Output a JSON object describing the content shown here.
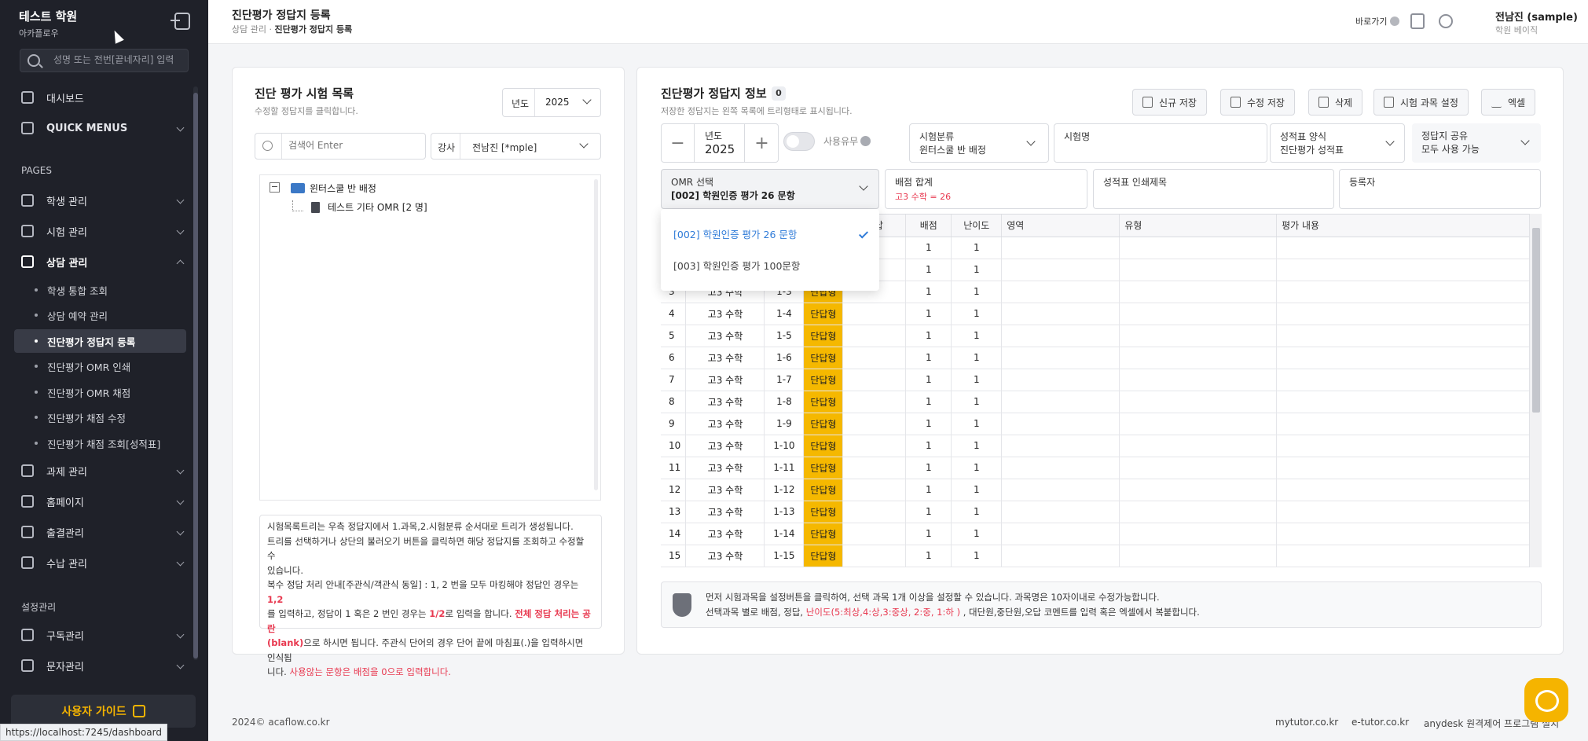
{
  "sidebar": {
    "brand_name": "테스트 학원",
    "brand_sub": "아카플로우",
    "search_placeholder": "성명 또는 전번[끝네자리] 입력",
    "dashboard": "대시보드",
    "quick_menus": "QUICK MENUS",
    "pages_section": "PAGES",
    "student": "학생 관리",
    "exam": "시험 관리",
    "counsel": "상담 관리",
    "sub_items": [
      "학생 통합 조회",
      "상담 예약 관리",
      "진단평가 정답지 등록",
      "진단평가 OMR 인쇄",
      "진단평가 OMR 채점",
      "진단평가 채점 수정",
      "진단평가 채점 조회[성적표]"
    ],
    "assignment": "과제 관리",
    "homepage": "홈페이지",
    "attendance": "출결관리",
    "payment": "수납 관리",
    "settings_section": "설정관리",
    "subscription": "구독관리",
    "sms": "문자관리",
    "guide_button": "사용자 가이드",
    "status_url": "https://localhost:7245/dashboard"
  },
  "header": {
    "title": "진단평가 정답지 등록",
    "crumb_parent": "상담 관리",
    "crumb_current": "진단평가 정답지 등록",
    "shortcut": "바로가기",
    "user_name": "전남진 (sample)",
    "user_role": "학원 베이직"
  },
  "left": {
    "title": "진단 평가 시험 목록",
    "subtitle": "수정할 정답지를 클릭합니다.",
    "year_label": "년도",
    "year_value": "2025",
    "search_placeholder": "검색어 Enter",
    "teacher_label": "강사",
    "teacher_value": "전남진 [*mple]",
    "tree_folder": "윈터스쿨 반 배정",
    "tree_file": "테스트 기타 OMR [2 명]",
    "notice": {
      "l1": "시험목록트리는 우측 정답지에서 1.과목,2.시험분류 순서대로 트리가 생성됩니다.",
      "l2": "트리를 선택하거나 상단의 불러오기 버튼을 클릭하면 해당 정답지를 조회하고 수정할 수",
      "l3": "있습니다.",
      "l4a": "복수 정답 처리 안내[주관식/객관식 동일] : 1, 2 번을 모두 마킹해야 정답인 경우는 ",
      "l4b": "1,2",
      "l5a": "를 입력하고, 정답이 1 혹은 2 번인 경우는 ",
      "l5b": "1/2",
      "l5c": "로 입력을 합니다. ",
      "l5d": "전체 정답 처리는 공란",
      "l6a": "(blank)",
      "l6b": "으로 하시면 됩니다. 주관식 단어의 경우 단어 끝에 마침표(.)을 입력하시면 인식됩",
      "l7a": "니다. ",
      "l7b": "사용않는 문항은 배점을 0으로 입력합니다."
    }
  },
  "right": {
    "title": "진단평가 정답지 정보",
    "count": "0",
    "subtitle": "저장한 정답지는 왼쪽 목록에 트리형태로 표시됩니다.",
    "buttons": [
      "신규 저장",
      "수정 저장",
      "삭제",
      "시험 과목 설정",
      "엑셀"
    ],
    "year_label": "년도",
    "year_value": "2025",
    "minus": "−",
    "plus": "+",
    "use_label": "사용유무",
    "category_label": "시험분류",
    "category_value": "윈터스쿨 반 배정",
    "exam_name_label": "시험명",
    "report_form_label": "성적표 양식",
    "report_form_value": "진단평가 성적표",
    "share_label": "정답지 공유",
    "share_value": "모두 사용 가능",
    "omr_label": "OMR 선택",
    "omr_value": "[002] 학원인증 평가 26 문항",
    "score_label": "배점 합계",
    "score_value": "고3 수학 = 26",
    "print_title_label": "성적표 인쇄제목",
    "registrar_label": "등록자",
    "dropdown_options": [
      "[002] 학원인증 평가 26 문항",
      "[003] 학원인증 평가 100문항"
    ],
    "columns": [
      "No",
      "과목",
      "번호",
      "유형",
      "정답",
      "배점",
      "난이도",
      "영역",
      "유형",
      "평가 내용"
    ],
    "rows": [
      {
        "no": "1",
        "subject": "고3 수학",
        "qno": "1-1",
        "type": "단답형",
        "answer": "",
        "score": "1",
        "level": "1"
      },
      {
        "no": "2",
        "subject": "고3 수학",
        "qno": "1-2",
        "type": "단답형",
        "answer": "",
        "score": "1",
        "level": "1"
      },
      {
        "no": "3",
        "subject": "고3 수학",
        "qno": "1-3",
        "type": "단답형",
        "answer": "",
        "score": "1",
        "level": "1"
      },
      {
        "no": "4",
        "subject": "고3 수학",
        "qno": "1-4",
        "type": "단답형",
        "answer": "",
        "score": "1",
        "level": "1"
      },
      {
        "no": "5",
        "subject": "고3 수학",
        "qno": "1-5",
        "type": "단답형",
        "answer": "",
        "score": "1",
        "level": "1"
      },
      {
        "no": "6",
        "subject": "고3 수학",
        "qno": "1-6",
        "type": "단답형",
        "answer": "",
        "score": "1",
        "level": "1"
      },
      {
        "no": "7",
        "subject": "고3 수학",
        "qno": "1-7",
        "type": "단답형",
        "answer": "",
        "score": "1",
        "level": "1"
      },
      {
        "no": "8",
        "subject": "고3 수학",
        "qno": "1-8",
        "type": "단답형",
        "answer": "",
        "score": "1",
        "level": "1"
      },
      {
        "no": "9",
        "subject": "고3 수학",
        "qno": "1-9",
        "type": "단답형",
        "answer": "",
        "score": "1",
        "level": "1"
      },
      {
        "no": "10",
        "subject": "고3 수학",
        "qno": "1-10",
        "type": "단답형",
        "answer": "",
        "score": "1",
        "level": "1"
      },
      {
        "no": "11",
        "subject": "고3 수학",
        "qno": "1-11",
        "type": "단답형",
        "answer": "",
        "score": "1",
        "level": "1"
      },
      {
        "no": "12",
        "subject": "고3 수학",
        "qno": "1-12",
        "type": "단답형",
        "answer": "",
        "score": "1",
        "level": "1"
      },
      {
        "no": "13",
        "subject": "고3 수학",
        "qno": "1-13",
        "type": "단답형",
        "answer": "",
        "score": "1",
        "level": "1"
      },
      {
        "no": "14",
        "subject": "고3 수학",
        "qno": "1-14",
        "type": "단답형",
        "answer": "",
        "score": "1",
        "level": "1"
      },
      {
        "no": "15",
        "subject": "고3 수학",
        "qno": "1-15",
        "type": "단답형",
        "answer": "",
        "score": "1",
        "level": "1"
      }
    ],
    "info_line1": "먼저 시험과목을 설정버튼을 클릭하여, 선택 과목 1개 이상을 설정할 수 있습니다. 과목명은 10자이내로 수정가능합니다.",
    "info_line2a": "선택과목 별로 배점, 정답, ",
    "info_line2b": "난이도(5:최상,4:상,3:중상, 2:중, 1:하 )",
    "info_line2c": " , 대단원,중단원,오답 코멘트를 입력 혹은 엑셀에서 복붙합니다."
  },
  "footer": {
    "copyright": "2024© acaflow.co.kr",
    "links": [
      "mytutor.co.kr",
      "e-tutor.co.kr",
      "anydesk 원격제어 프로그램 설치"
    ]
  },
  "colors": {
    "accent": "#f5b400",
    "sidebar_bg": "#1f2129",
    "link_blue": "#2f7bd8",
    "alert_red": "#e8384f"
  }
}
